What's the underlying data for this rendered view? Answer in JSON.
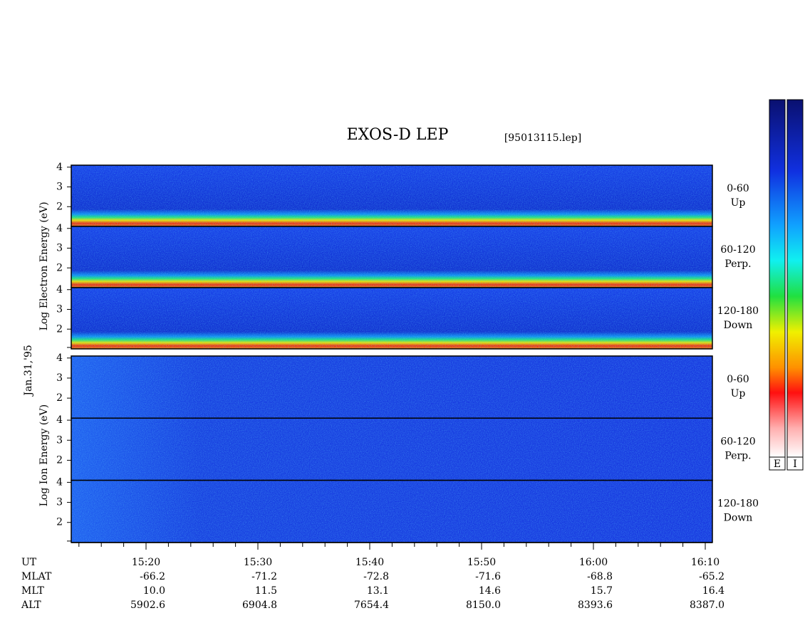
{
  "chart_data": {
    "type": "spectrogram",
    "title": "EXOS-D LEP",
    "subtitle": "[95013115.lep]",
    "date": "Jan.31,'95",
    "ylim": [
      1,
      4.1
    ],
    "yticks": [
      2,
      3,
      4
    ],
    "groups": [
      {
        "name": "electron",
        "ylabel": "Log Electron Energy (eV)",
        "panels": [
          {
            "label": "0-60",
            "sublabel": "Up"
          },
          {
            "label": "60-120",
            "sublabel": "Perp."
          },
          {
            "label": "120-180",
            "sublabel": "Down"
          }
        ]
      },
      {
        "name": "ion",
        "ylabel": "Log Ion Energy (eV)",
        "panels": [
          {
            "label": "0-60",
            "sublabel": "Up"
          },
          {
            "label": "60-120",
            "sublabel": "Perp."
          },
          {
            "label": "120-180",
            "sublabel": "Down"
          }
        ]
      }
    ],
    "rows": [
      {
        "name": "UT",
        "values": [
          "15:20",
          "15:30",
          "15:40",
          "15:50",
          "16:00",
          "16:10"
        ]
      },
      {
        "name": "MLAT",
        "values": [
          "-66.2",
          "-71.2",
          "-72.8",
          "-71.6",
          "-68.8",
          "-65.2"
        ]
      },
      {
        "name": "MLT",
        "values": [
          "10.0",
          "11.5",
          "13.1",
          "14.6",
          "15.7",
          "16.4"
        ]
      },
      {
        "name": "ALT",
        "values": [
          "5902.6",
          "6904.8",
          "7654.4",
          "8150.0",
          "8393.6",
          "8387.0"
        ]
      }
    ],
    "colorbar_labels": [
      "E",
      "I"
    ]
  }
}
